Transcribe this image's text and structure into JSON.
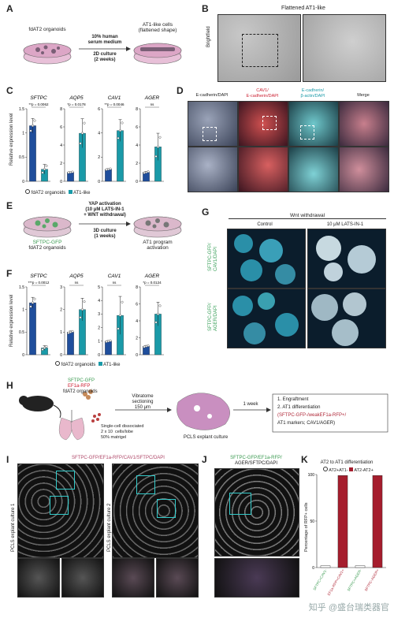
{
  "panels": {
    "A": {
      "letter": "A",
      "left_label": "fdAT2 organoids",
      "right_label": "AT1-like cells\n(flattened shape)",
      "arrow_top": "10% human\nserum medium",
      "arrow_bottom": "2D culture\n(2 weeks)"
    },
    "B": {
      "letter": "B",
      "title": "Flattened AT1-like",
      "side_label": "Brightfield"
    },
    "C": {
      "letter": "C",
      "ylabel": "Relative expression level",
      "legend": [
        "fdAT2 organoids",
        "AT1-like"
      ],
      "colors": {
        "org": "#1f4e9c",
        "at1": "#1a9aa8"
      }
    },
    "D": {
      "letter": "D",
      "headers": [
        "E-cadherin/DAPI",
        "CAV1/\nE-cadherin/DAPI",
        "E-cadherin/\nβ-actin/DAPI",
        "Merge"
      ]
    },
    "E": {
      "letter": "E",
      "left_label_1": "SFTPC-GFP",
      "left_label_2": "fdAT2 organoids",
      "arrow_top": "YAP activation\n(10 μM LATS-IN-1\n+ WNT withdrawal)",
      "arrow_bottom": "3D culture\n(1 weeks)",
      "right_label": "AT1 program\nactivation"
    },
    "F": {
      "letter": "F",
      "ylabel": "Relative expression level",
      "legend": [
        "fdAT2 organoids",
        "AT1-like"
      ]
    },
    "G": {
      "letter": "G",
      "top": "Wnt withdrawal",
      "col_control": "Control",
      "col_lats": "10  μM LATS-IN-1",
      "row1": "SFTPC-GFP/\nCAV1/DAPI",
      "row2": "SFTPC-GFP/\nAGER/DAPI"
    },
    "H": {
      "letter": "H",
      "org_1": "SFTPC-GFP",
      "org_2": "EF1a-RFP",
      "org_3": "fdAT2 organoids",
      "dissoc": "Single-cell dissociated\n2 x 10  cells/lobe\n50% matrigel",
      "vibratome": "Vibratome\nsectioning\n150 μm",
      "pcls": "PCLS explant culture",
      "week": "1 week",
      "box_1": "1. Engraftment",
      "box_2": "2. AT1 differentiation",
      "box_3": "(SFTPC-GFP-/weakEF1a-RFP+/",
      "box_4": "AT1 markers; CAV1/AGER)"
    },
    "I": {
      "letter": "I",
      "title": "SFTPC-GFP/EF1a-RFP/CAV1/SFTPC/DAPI",
      "row1": "PCLS explant culture 1",
      "row2": "PCLS explant culture 2"
    },
    "J": {
      "letter": "J",
      "title_1": "SFTPC-GFP/EF1a-RFP/",
      "title_2": "AGER/SFTPC/DAPI"
    },
    "K": {
      "letter": "K",
      "title": "AT2 to AT1 differentiation",
      "legend": [
        "AT2+AT1-",
        "AT2-AT2+"
      ],
      "ylabel": "Percentage of RFP+ cells",
      "colors": {
        "open": "#ffffff",
        "red": "#a51d2d"
      }
    }
  },
  "chart_data": [
    {
      "id": "C-SFTPC",
      "type": "bar",
      "title": "SFTPC",
      "categories": [
        "fdAT2 organoids",
        "AT1-like"
      ],
      "values": [
        1.15,
        0.25
      ],
      "errors": [
        0.15,
        0.1
      ],
      "ylim": [
        0,
        1.5
      ],
      "yticks": [
        0.0,
        0.5,
        1.0,
        1.5
      ],
      "pvalue": "**p = 0.0062"
    },
    {
      "id": "C-AQP5",
      "type": "bar",
      "title": "AQP5",
      "categories": [
        "fdAT2 organoids",
        "AT1-like"
      ],
      "values": [
        1.0,
        5.3
      ],
      "errors": [
        0.05,
        1.6
      ],
      "ylim": [
        0,
        8
      ],
      "yticks": [
        0,
        2,
        4,
        6,
        8
      ],
      "pvalue": "*p = 0.0178"
    },
    {
      "id": "C-CAV1",
      "type": "bar",
      "title": "CAV1",
      "categories": [
        "fdAT2 organoids",
        "AT1-like"
      ],
      "values": [
        1.0,
        4.2
      ],
      "errors": [
        0.05,
        0.9
      ],
      "ylim": [
        0,
        6
      ],
      "yticks": [
        0,
        2,
        4,
        6
      ],
      "pvalue": "**p = 0.0046"
    },
    {
      "id": "C-AGER",
      "type": "bar",
      "title": "AGER",
      "categories": [
        "fdAT2 organoids",
        "AT1-like"
      ],
      "values": [
        1.0,
        3.8
      ],
      "errors": [
        0.1,
        1.5
      ],
      "ylim": [
        0,
        8
      ],
      "yticks": [
        0,
        2,
        4,
        6,
        8
      ],
      "pvalue": "ns"
    },
    {
      "id": "F-SFTPC",
      "type": "bar",
      "title": "SFTPC",
      "categories": [
        "fdAT2 organoids",
        "AT1-like"
      ],
      "values": [
        1.15,
        0.15
      ],
      "errors": [
        0.12,
        0.05
      ],
      "ylim": [
        0,
        1.5
      ],
      "yticks": [
        0.0,
        0.5,
        1.0,
        1.5
      ],
      "pvalue": "***p = 0.0012"
    },
    {
      "id": "F-AQP5",
      "type": "bar",
      "title": "AQP5",
      "categories": [
        "fdAT2 organoids",
        "AT1-like"
      ],
      "values": [
        1.0,
        2.0
      ],
      "errors": [
        0.05,
        0.5
      ],
      "ylim": [
        0,
        3
      ],
      "yticks": [
        0,
        1,
        2,
        3
      ],
      "pvalue": "ns"
    },
    {
      "id": "F-CAV1",
      "type": "bar",
      "title": "CAV1",
      "categories": [
        "fdAT2 organoids",
        "AT1-like"
      ],
      "values": [
        1.0,
        2.9
      ],
      "errors": [
        0.05,
        1.4
      ],
      "ylim": [
        0,
        5
      ],
      "yticks": [
        0,
        1,
        2,
        3,
        4,
        5
      ],
      "pvalue": "ns"
    },
    {
      "id": "F-AGER",
      "type": "bar",
      "title": "AGER",
      "categories": [
        "fdAT2 organoids",
        "AT1-like"
      ],
      "values": [
        1.0,
        4.8
      ],
      "errors": [
        0.1,
        1.4
      ],
      "ylim": [
        0,
        8
      ],
      "yticks": [
        0,
        2,
        4,
        6,
        8
      ],
      "pvalue": "*p = 0.0124"
    },
    {
      "id": "K",
      "type": "bar",
      "title": "AT2 to AT1 differentiation",
      "categories": [
        "SFTPC+CAV1-",
        "EF1a-RFP+CAV1+",
        "SFTPC+AGER-",
        "SFTPC-AGER+"
      ],
      "values": [
        2,
        99,
        2,
        99
      ],
      "ylim": [
        0,
        100
      ],
      "yticks": [
        0,
        50,
        100
      ],
      "ylabel": "Percentage of RFP+ cells"
    }
  ],
  "watermark": "知乎 @盛台瑞类器官"
}
